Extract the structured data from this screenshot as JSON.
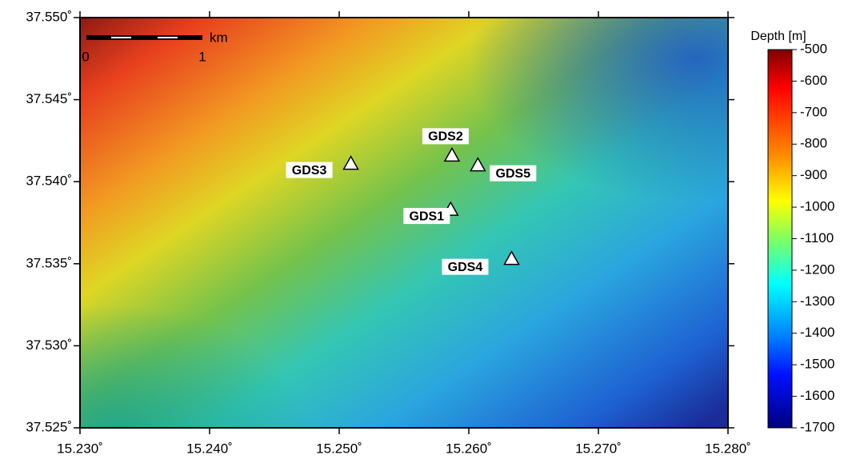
{
  "map": {
    "lonlim": [
      15.23,
      15.28
    ],
    "latlim": [
      37.525,
      37.55
    ],
    "lonticks": [
      {
        "value": 15.23,
        "label": "15.230˚"
      },
      {
        "value": 15.24,
        "label": "15.240˚"
      },
      {
        "value": 15.25,
        "label": "15.250˚"
      },
      {
        "value": 15.26,
        "label": "15.260˚"
      },
      {
        "value": 15.27,
        "label": "15.270˚"
      },
      {
        "value": 15.28,
        "label": "15.280˚"
      }
    ],
    "latticks": [
      {
        "value": 37.525,
        "label": "37.525˚"
      },
      {
        "value": 37.53,
        "label": "37.530˚"
      },
      {
        "value": 37.535,
        "label": "37.535˚"
      },
      {
        "value": 37.54,
        "label": "37.540˚"
      },
      {
        "value": 37.545,
        "label": "37.545˚"
      },
      {
        "value": 37.55,
        "label": "37.550˚"
      }
    ],
    "stations": [
      {
        "name": "GDS1",
        "lon": 15.2586,
        "lat": 37.5383
      },
      {
        "name": "GDS2",
        "lon": 15.2587,
        "lat": 37.5416
      },
      {
        "name": "GDS3",
        "lon": 15.2509,
        "lat": 37.5411
      },
      {
        "name": "GDS4",
        "lon": 15.2633,
        "lat": 37.5353
      },
      {
        "name": "GDS5",
        "lon": 15.2607,
        "lat": 37.541
      }
    ],
    "scale_bar": {
      "unit": "km",
      "start": 0,
      "end": 1
    },
    "colorbar": {
      "title": "Depth [m]",
      "lim": [
        -500,
        -1700
      ],
      "ticks": [
        -500,
        -600,
        -700,
        -800,
        -900,
        -1000,
        -1100,
        -1200,
        -1300,
        -1400,
        -1500,
        -1600,
        -1700
      ]
    }
  }
}
